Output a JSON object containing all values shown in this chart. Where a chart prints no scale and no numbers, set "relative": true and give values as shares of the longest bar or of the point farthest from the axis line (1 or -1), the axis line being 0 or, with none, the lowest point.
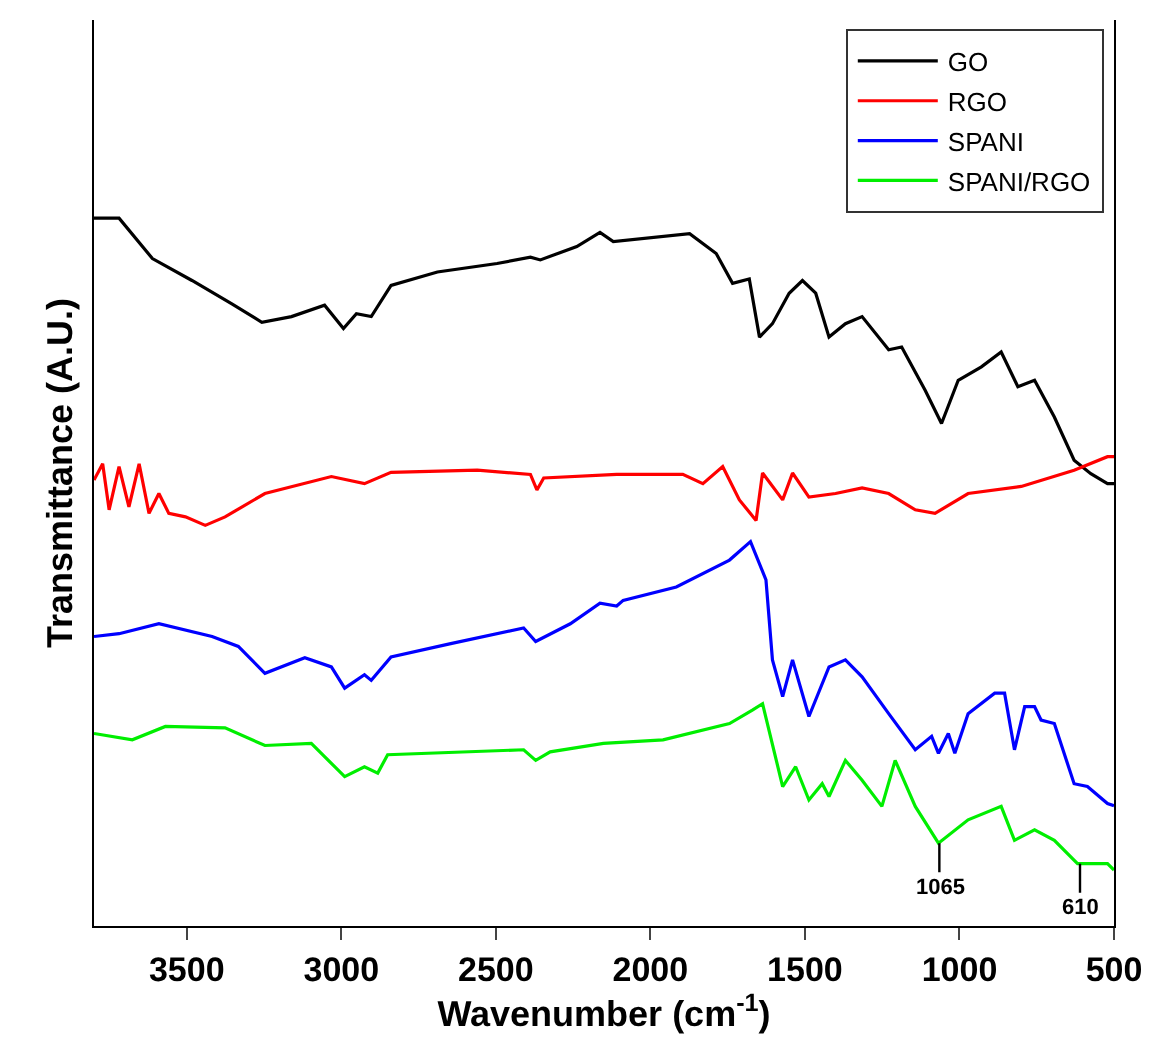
{
  "chart_data": {
    "type": "line",
    "relative": true,
    "xlabel": "Wavenumber (cm$^{-1}$)",
    "ylabel": "Transmittance (A.U.)",
    "xlim": [
      3800,
      500
    ],
    "xticks": [
      3500,
      3000,
      2500,
      2000,
      1500,
      1000,
      500
    ],
    "legend": "top right",
    "grid": false,
    "marker": "none",
    "line_style": "solid",
    "tick_labels": "x",
    "annotations": [
      {
        "text": "1065",
        "x": 1065,
        "y": 0.117
      },
      {
        "text": "610",
        "x": 610,
        "y": 0.088
      }
    ],
    "series": [
      {
        "name": "GO",
        "color": "#000000",
        "x": [
          3800,
          3719,
          3611,
          3483,
          3354,
          3257,
          3161,
          3054,
          2993,
          2951,
          2903,
          2839,
          2689,
          2496,
          2388,
          2356,
          2238,
          2163,
          2120,
          1873,
          1787,
          1734,
          1680,
          1647,
          1605,
          1551,
          1508,
          1465,
          1422,
          1369,
          1315,
          1229,
          1187,
          1111,
          1058,
          1004,
          929,
          865,
          811,
          757,
          693,
          629,
          575,
          521,
          500
        ],
        "values": [
          1.0,
          1.0,
          0.943,
          0.912,
          0.879,
          0.853,
          0.861,
          0.877,
          0.844,
          0.865,
          0.861,
          0.905,
          0.924,
          0.936,
          0.945,
          0.941,
          0.96,
          0.98,
          0.967,
          0.978,
          0.95,
          0.908,
          0.914,
          0.832,
          0.851,
          0.894,
          0.912,
          0.894,
          0.832,
          0.851,
          0.861,
          0.814,
          0.818,
          0.757,
          0.71,
          0.771,
          0.79,
          0.811,
          0.762,
          0.771,
          0.719,
          0.658,
          0.639,
          0.625,
          0.625
        ]
      },
      {
        "name": "RGO",
        "color": "#ff0000",
        "x": [
          3800,
          3772,
          3751,
          3719,
          3687,
          3654,
          3622,
          3590,
          3558,
          3504,
          3440,
          3376,
          3247,
          3032,
          2925,
          2839,
          2560,
          2388,
          2367,
          2345,
          2109,
          1895,
          1830,
          1766,
          1712,
          1658,
          1637,
          1572,
          1540,
          1487,
          1401,
          1315,
          1229,
          1143,
          1079,
          972,
          800,
          629,
          521,
          500
        ],
        "values": [
          0.63,
          0.653,
          0.588,
          0.649,
          0.592,
          0.653,
          0.583,
          0.611,
          0.583,
          0.578,
          0.566,
          0.578,
          0.611,
          0.635,
          0.625,
          0.641,
          0.644,
          0.638,
          0.616,
          0.633,
          0.638,
          0.638,
          0.625,
          0.649,
          0.602,
          0.573,
          0.64,
          0.602,
          0.64,
          0.606,
          0.611,
          0.619,
          0.611,
          0.588,
          0.583,
          0.611,
          0.621,
          0.644,
          0.663,
          0.663
        ]
      },
      {
        "name": "SPANI",
        "color": "#0000ff",
        "x": [
          3800,
          3719,
          3590,
          3418,
          3333,
          3247,
          3118,
          3032,
          2989,
          2925,
          2903,
          2839,
          2646,
          2410,
          2371,
          2259,
          2163,
          2109,
          2088,
          1916,
          1744,
          1676,
          1626,
          1605,
          1572,
          1540,
          1487,
          1422,
          1369,
          1315,
          1229,
          1143,
          1090,
          1068,
          1036,
          1015,
          972,
          886,
          854,
          822,
          789,
          757,
          736,
          693,
          629,
          586,
          521,
          500
        ],
        "values": [
          0.409,
          0.413,
          0.427,
          0.409,
          0.395,
          0.357,
          0.379,
          0.366,
          0.336,
          0.355,
          0.347,
          0.38,
          0.399,
          0.421,
          0.402,
          0.427,
          0.456,
          0.452,
          0.46,
          0.479,
          0.517,
          0.543,
          0.489,
          0.376,
          0.324,
          0.376,
          0.296,
          0.366,
          0.376,
          0.352,
          0.3,
          0.249,
          0.268,
          0.244,
          0.272,
          0.244,
          0.3,
          0.329,
          0.329,
          0.249,
          0.31,
          0.31,
          0.291,
          0.286,
          0.201,
          0.197,
          0.173,
          0.17
        ]
      },
      {
        "name": "SPANI/RGO",
        "color": "#00ee00",
        "x": [
          3800,
          3676,
          3569,
          3376,
          3247,
          3097,
          2989,
          2925,
          2882,
          2850,
          2410,
          2371,
          2324,
          2152,
          1959,
          1744,
          1670,
          1637,
          1572,
          1530,
          1487,
          1444,
          1422,
          1369,
          1315,
          1251,
          1208,
          1143,
          1068,
          972,
          865,
          822,
          757,
          693,
          618,
          521,
          500
        ],
        "values": [
          0.272,
          0.263,
          0.282,
          0.28,
          0.255,
          0.258,
          0.211,
          0.225,
          0.216,
          0.242,
          0.249,
          0.234,
          0.246,
          0.258,
          0.263,
          0.286,
          0.305,
          0.314,
          0.197,
          0.225,
          0.178,
          0.201,
          0.183,
          0.234,
          0.206,
          0.169,
          0.234,
          0.169,
          0.117,
          0.15,
          0.169,
          0.121,
          0.136,
          0.121,
          0.088,
          0.088,
          0.079
        ]
      }
    ]
  }
}
